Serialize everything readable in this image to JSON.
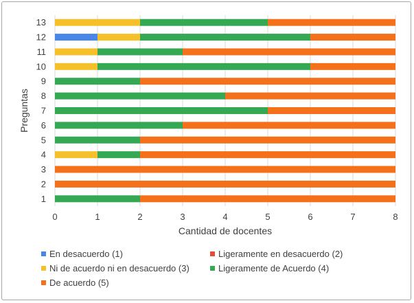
{
  "chart_data": {
    "type": "bar",
    "orientation": "horizontal",
    "stacked": true,
    "categories": [
      "1",
      "2",
      "3",
      "4",
      "5",
      "6",
      "7",
      "8",
      "9",
      "10",
      "11",
      "12",
      "13"
    ],
    "xlabel": "Cantidad de docentes",
    "ylabel": "Preguntas",
    "xlim": [
      0,
      8
    ],
    "xticks": [
      "0",
      "1",
      "2",
      "3",
      "4",
      "5",
      "6",
      "7",
      "8"
    ],
    "grid": "vertical",
    "legend_position": "bottom",
    "series": [
      {
        "name": "En desacuerdo (1)",
        "color": "#4a86e8",
        "values": [
          0,
          0,
          0,
          0,
          0,
          0,
          0,
          0,
          0,
          0,
          0,
          1,
          0
        ]
      },
      {
        "name": "Ligeramente en desacuerdo (2)",
        "color": "#e64a3b",
        "values": [
          0,
          0,
          0,
          0,
          0,
          0,
          0,
          0,
          0,
          0,
          0,
          0,
          0
        ]
      },
      {
        "name": "Ni de acuerdo ni en desacuerdo (3)",
        "color": "#f5c02a",
        "values": [
          0,
          0,
          0,
          1,
          0,
          0,
          0,
          0,
          0,
          1,
          1,
          1,
          2
        ]
      },
      {
        "name": "Ligeramente de Acuerdo (4)",
        "color": "#34a853",
        "values": [
          2,
          0,
          0,
          1,
          2,
          3,
          5,
          4,
          2,
          5,
          2,
          4,
          3
        ]
      },
      {
        "name": "De acuerdo (5)",
        "color": "#f4701b",
        "values": [
          6,
          8,
          8,
          6,
          6,
          5,
          3,
          4,
          6,
          2,
          5,
          2,
          3
        ]
      }
    ]
  }
}
